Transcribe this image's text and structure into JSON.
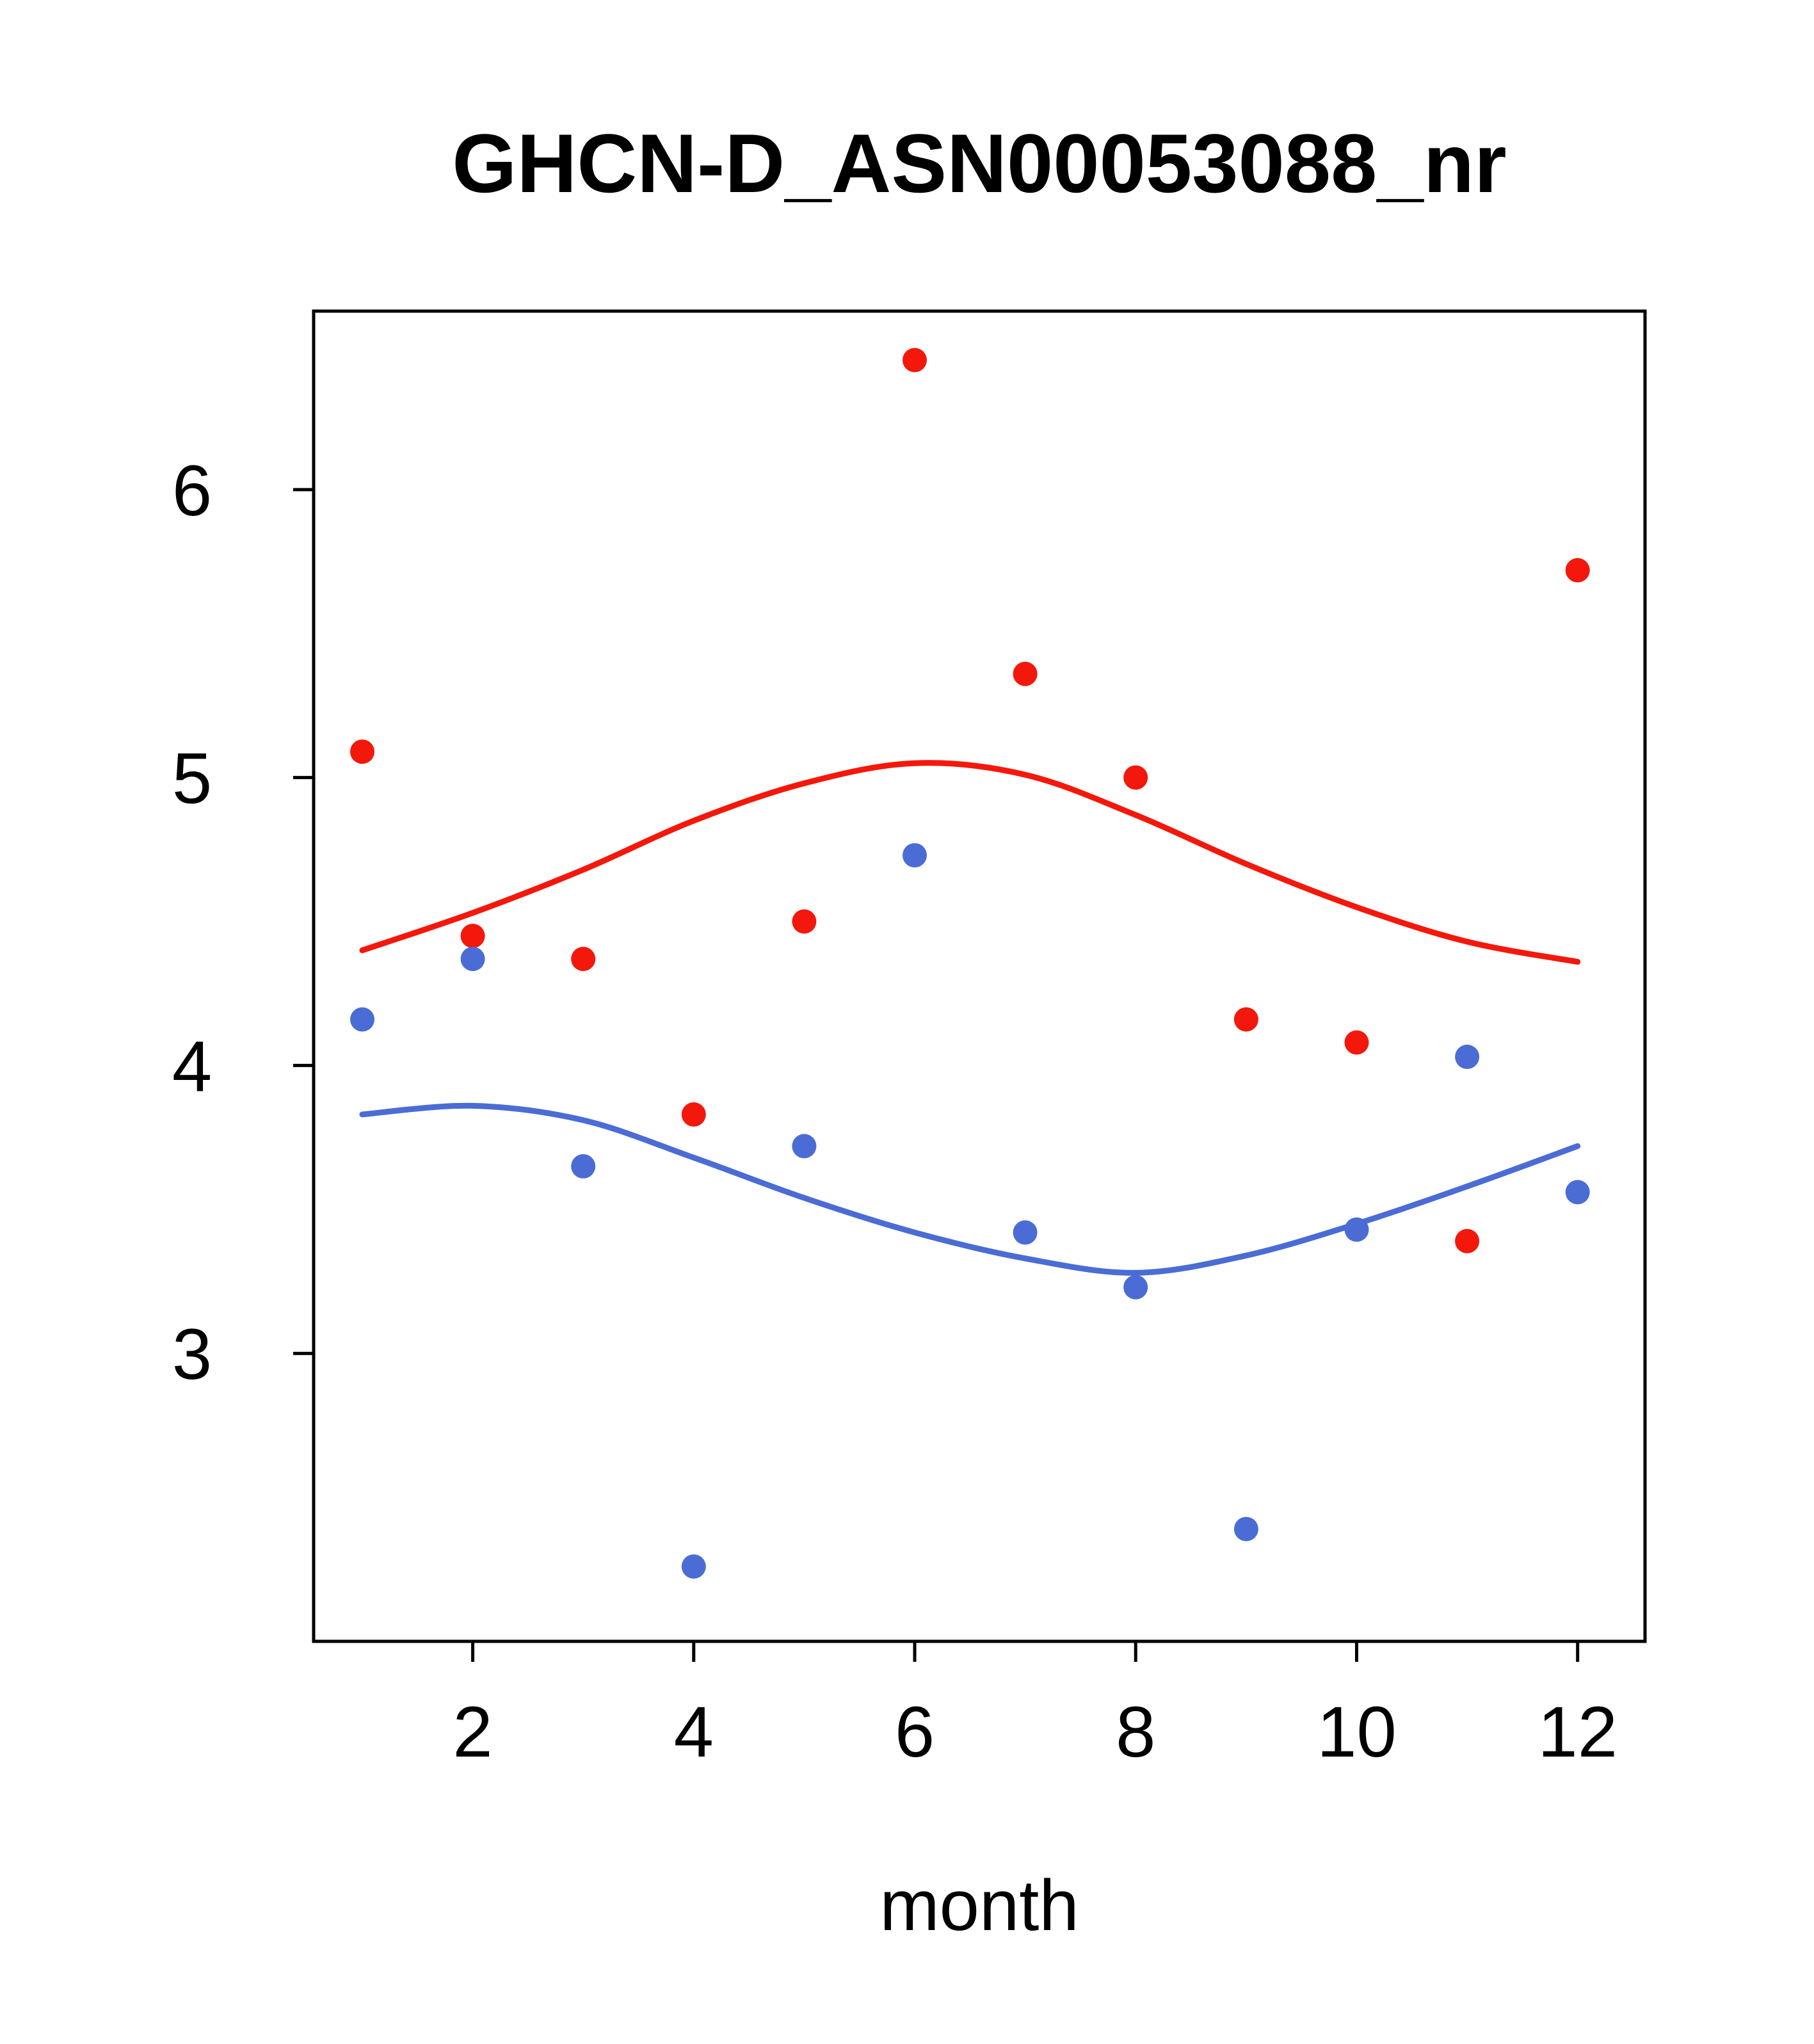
{
  "chart_data": {
    "type": "scatter",
    "title": "GHCN-D_ASN00053088_nr",
    "xlabel": "month",
    "ylabel": "",
    "xlim": [
      0.56,
      12.61
    ],
    "ylim": [
      2.0,
      6.62
    ],
    "xticks": [
      2,
      4,
      6,
      8,
      10,
      12
    ],
    "yticks": [
      3,
      4,
      5,
      6
    ],
    "grid": false,
    "legend": "none",
    "frame_color": "#000000",
    "series": [
      {
        "name": "red-series",
        "color": "#f3180b",
        "points": [
          [
            1,
            5.09
          ],
          [
            2,
            4.45
          ],
          [
            3,
            4.37
          ],
          [
            4,
            3.83
          ],
          [
            5,
            4.5
          ],
          [
            6,
            6.45
          ],
          [
            7,
            5.36
          ],
          [
            8,
            5.0
          ],
          [
            9,
            4.16
          ],
          [
            10,
            4.08
          ],
          [
            11,
            3.39
          ],
          [
            12,
            5.72
          ]
        ],
        "smooth_line": [
          [
            1,
            4.4
          ],
          [
            2,
            4.53
          ],
          [
            3,
            4.68
          ],
          [
            4,
            4.85
          ],
          [
            5,
            4.98
          ],
          [
            6,
            5.05
          ],
          [
            7,
            5.01
          ],
          [
            8,
            4.87
          ],
          [
            9,
            4.7
          ],
          [
            10,
            4.55
          ],
          [
            11,
            4.43
          ],
          [
            12,
            4.36
          ]
        ]
      },
      {
        "name": "blue-series",
        "color": "#4a6cd4",
        "points": [
          [
            1,
            4.16
          ],
          [
            2,
            4.37
          ],
          [
            3,
            3.65
          ],
          [
            4,
            2.26
          ],
          [
            5,
            3.72
          ],
          [
            6,
            4.73
          ],
          [
            7,
            3.42
          ],
          [
            8,
            3.23
          ],
          [
            9,
            2.39
          ],
          [
            10,
            3.43
          ],
          [
            11,
            4.03
          ],
          [
            12,
            3.56
          ]
        ],
        "smooth_line": [
          [
            1,
            3.83
          ],
          [
            2,
            3.86
          ],
          [
            3,
            3.81
          ],
          [
            4,
            3.68
          ],
          [
            5,
            3.54
          ],
          [
            6,
            3.42
          ],
          [
            7,
            3.33
          ],
          [
            8,
            3.28
          ],
          [
            9,
            3.34
          ],
          [
            10,
            3.45
          ],
          [
            11,
            3.58
          ],
          [
            12,
            3.72
          ]
        ]
      }
    ]
  }
}
